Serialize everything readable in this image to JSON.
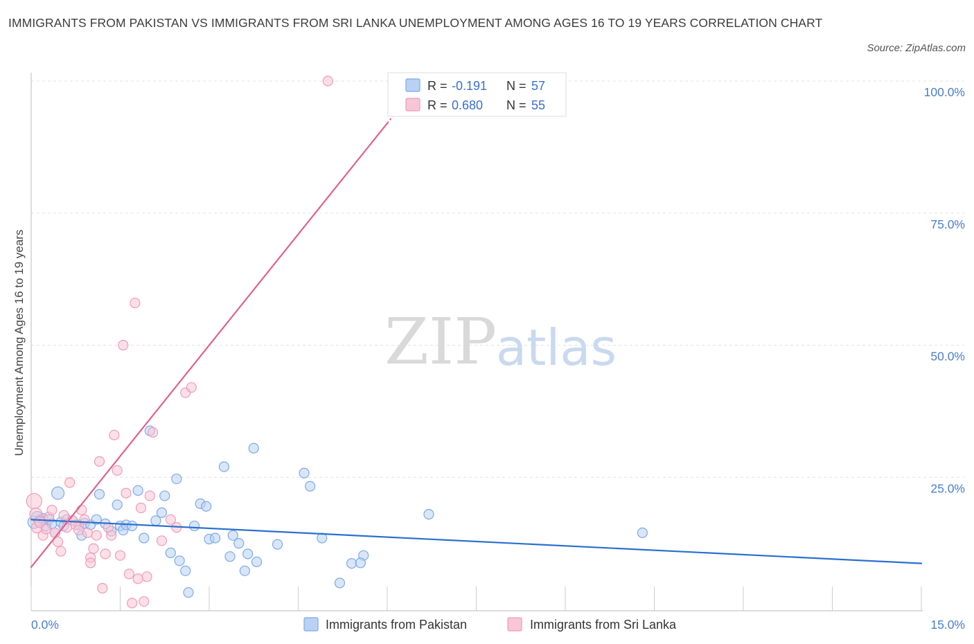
{
  "title": "IMMIGRANTS FROM PAKISTAN VS IMMIGRANTS FROM SRI LANKA UNEMPLOYMENT AMONG AGES 16 TO 19 YEARS CORRELATION CHART",
  "source": "Source: ZipAtlas.com",
  "watermark": {
    "zip": "ZIP",
    "atlas": "atlas"
  },
  "chart_data": {
    "type": "scatter",
    "title": "IMMIGRANTS FROM PAKISTAN VS IMMIGRANTS FROM SRI LANKA UNEMPLOYMENT AMONG AGES 16 TO 19 YEARS CORRELATION CHART",
    "xlabel": "",
    "ylabel": "Unemployment Among Ages 16 to 19 years",
    "xlim": [
      0,
      15
    ],
    "ylim": [
      0,
      100
    ],
    "x_tick_labels": [
      "0.0%",
      "15.0%"
    ],
    "y_ticks": [
      25,
      50,
      75,
      100
    ],
    "y_tick_labels": [
      "25.0%",
      "50.0%",
      "75.0%",
      "100.0%"
    ],
    "grid": true,
    "legend_position": "top-center",
    "series": [
      {
        "name": "Immigrants from Pakistan",
        "color": "#7baae8",
        "fill": "#b9d1f3",
        "line_color": "#2a6fcf",
        "R": "-0.191",
        "N": "57",
        "trend": {
          "x0": 0,
          "y0": 17.0,
          "x1": 15,
          "y1": 8.7
        },
        "points": [
          [
            0.05,
            16.5,
            9
          ],
          [
            0.1,
            17.5,
            8
          ],
          [
            0.15,
            16.8,
            8
          ],
          [
            0.2,
            17.2,
            7
          ],
          [
            0.25,
            15.8,
            7
          ],
          [
            0.3,
            17.0,
            7
          ],
          [
            0.35,
            16.2,
            7
          ],
          [
            0.4,
            14.5,
            7
          ],
          [
            0.45,
            22.0,
            9
          ],
          [
            0.5,
            16.5,
            7
          ],
          [
            0.55,
            15.8,
            7
          ],
          [
            0.6,
            17.0,
            7
          ],
          [
            0.7,
            16.8,
            7
          ],
          [
            0.8,
            16.0,
            7
          ],
          [
            0.85,
            14.0,
            7
          ],
          [
            0.9,
            16.3,
            7
          ],
          [
            1.0,
            16.0,
            7
          ],
          [
            1.1,
            17.0,
            7
          ],
          [
            1.15,
            21.8,
            7
          ],
          [
            1.25,
            16.2,
            7
          ],
          [
            1.35,
            14.8,
            7
          ],
          [
            1.45,
            19.8,
            7
          ],
          [
            1.5,
            15.8,
            7
          ],
          [
            1.55,
            15.0,
            7
          ],
          [
            1.6,
            16.0,
            7
          ],
          [
            1.7,
            15.8,
            7
          ],
          [
            1.8,
            22.5,
            7
          ],
          [
            1.9,
            13.5,
            7
          ],
          [
            2.0,
            33.8,
            7
          ],
          [
            2.1,
            16.8,
            7
          ],
          [
            2.2,
            18.3,
            7
          ],
          [
            2.25,
            21.5,
            7
          ],
          [
            2.35,
            10.7,
            7
          ],
          [
            2.45,
            24.7,
            7
          ],
          [
            2.5,
            9.2,
            7
          ],
          [
            2.6,
            7.3,
            7
          ],
          [
            2.65,
            3.2,
            7
          ],
          [
            2.75,
            15.8,
            7
          ],
          [
            2.85,
            20.0,
            7
          ],
          [
            2.95,
            19.5,
            7
          ],
          [
            3.0,
            13.3,
            7
          ],
          [
            3.1,
            13.5,
            7
          ],
          [
            3.25,
            27.0,
            7
          ],
          [
            3.35,
            10.0,
            7
          ],
          [
            3.4,
            14.0,
            7
          ],
          [
            3.5,
            12.5,
            7
          ],
          [
            3.6,
            7.3,
            7
          ],
          [
            3.65,
            10.5,
            7
          ],
          [
            3.75,
            30.5,
            7
          ],
          [
            3.8,
            9.0,
            7
          ],
          [
            4.15,
            12.3,
            7
          ],
          [
            4.6,
            25.8,
            7
          ],
          [
            4.7,
            23.3,
            7
          ],
          [
            4.9,
            13.5,
            7
          ],
          [
            5.2,
            5.0,
            7
          ],
          [
            5.4,
            8.7,
            7
          ],
          [
            5.6,
            10.2,
            7
          ],
          [
            5.55,
            8.8,
            7
          ],
          [
            6.7,
            18.0,
            7
          ],
          [
            10.3,
            14.5,
            7
          ]
        ]
      },
      {
        "name": "Immigrants from Sri Lanka",
        "color": "#f09bb6",
        "fill": "#f8c6d6",
        "line_color": "#e0608c",
        "R": "0.680",
        "N": "55",
        "trend": {
          "x0": 0,
          "y0": 8.0,
          "x1": 6.0,
          "y1": 92.0
        },
        "points": [
          [
            0.05,
            20.5,
            11
          ],
          [
            0.08,
            18.0,
            9
          ],
          [
            0.1,
            15.5,
            8
          ],
          [
            0.15,
            16.5,
            8
          ],
          [
            0.2,
            14.0,
            7
          ],
          [
            0.25,
            15.2,
            7
          ],
          [
            0.3,
            17.5,
            7
          ],
          [
            0.35,
            18.8,
            7
          ],
          [
            0.4,
            14.5,
            7
          ],
          [
            0.45,
            12.8,
            7
          ],
          [
            0.5,
            11.0,
            7
          ],
          [
            0.55,
            17.8,
            7
          ],
          [
            0.6,
            15.5,
            7
          ],
          [
            0.65,
            24.0,
            7
          ],
          [
            0.7,
            16.8,
            7
          ],
          [
            0.75,
            16.0,
            7
          ],
          [
            0.8,
            15.0,
            7
          ],
          [
            0.85,
            18.8,
            7
          ],
          [
            0.9,
            17.0,
            7
          ],
          [
            0.95,
            14.5,
            7
          ],
          [
            1.0,
            9.8,
            7
          ],
          [
            1.0,
            8.8,
            7
          ],
          [
            1.05,
            11.5,
            7
          ],
          [
            1.1,
            14.0,
            7
          ],
          [
            1.15,
            28.0,
            7
          ],
          [
            1.2,
            4.0,
            7
          ],
          [
            1.25,
            10.5,
            7
          ],
          [
            1.3,
            15.5,
            7
          ],
          [
            1.35,
            14.0,
            7
          ],
          [
            1.4,
            33.0,
            7
          ],
          [
            1.45,
            26.3,
            7
          ],
          [
            1.5,
            10.2,
            7
          ],
          [
            1.55,
            50.0,
            7
          ],
          [
            1.6,
            22.0,
            7
          ],
          [
            1.65,
            6.7,
            7
          ],
          [
            1.7,
            1.2,
            7
          ],
          [
            1.75,
            58.0,
            7
          ],
          [
            1.8,
            5.8,
            7
          ],
          [
            1.85,
            19.2,
            7
          ],
          [
            1.9,
            1.5,
            7
          ],
          [
            1.95,
            6.2,
            7
          ],
          [
            2.0,
            21.5,
            7
          ],
          [
            2.05,
            33.5,
            7
          ],
          [
            2.2,
            13.0,
            7
          ],
          [
            2.35,
            17.0,
            7
          ],
          [
            2.45,
            15.5,
            7
          ],
          [
            2.6,
            41.0,
            7
          ],
          [
            2.7,
            42.0,
            7
          ],
          [
            5.0,
            100.0,
            7
          ]
        ]
      }
    ]
  },
  "legend": {
    "r_label": "R =",
    "n_label": "N =",
    "rows": [
      {
        "r": "-0.191",
        "n": "57"
      },
      {
        "r": "0.680",
        "n": "55"
      }
    ]
  },
  "bottom_legend": [
    "Immigrants from Pakistan",
    "Immigrants from Sri Lanka"
  ]
}
